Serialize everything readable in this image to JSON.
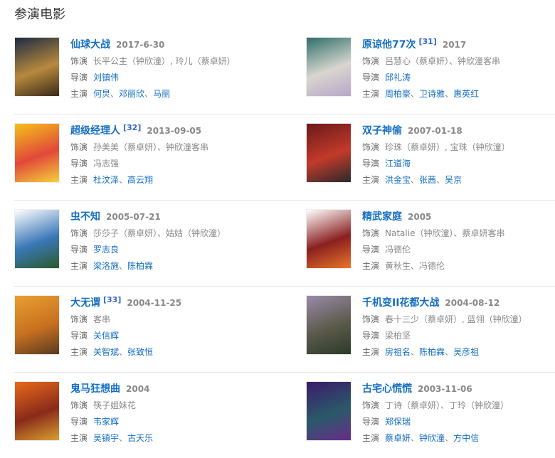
{
  "section_title": "参演电影",
  "colors": {
    "link": "#136ec2",
    "label": "#666666",
    "muted": "#888888"
  },
  "labels": {
    "role": "饰演",
    "director": "导演",
    "cast": "主演"
  },
  "films": [
    {
      "title": "仙球大战",
      "ref": "",
      "date": "2017-6-30",
      "role": "长平公主（钟欣潼）, 玲儿（蔡卓妍）",
      "director": {
        "name": "刘镇伟",
        "link": true
      },
      "cast": [
        {
          "name": "何炅",
          "link": true
        },
        {
          "name": "邓丽欣",
          "link": true
        },
        {
          "name": "马丽",
          "link": true
        }
      ],
      "poster_colors": [
        "#1c2a44",
        "#b7893d",
        "#3a2a1a"
      ]
    },
    {
      "title": "原谅他77次",
      "ref": "[31]",
      "date": "2017",
      "role": "吕慧心（蔡卓妍）、钟欣潼客串",
      "director": {
        "name": "邱礼涛",
        "link": true
      },
      "cast": [
        {
          "name": "周柏豪",
          "link": true
        },
        {
          "name": "卫诗雅",
          "link": true
        },
        {
          "name": "惠英红",
          "link": true
        }
      ],
      "poster_colors": [
        "#2f6f6a",
        "#d8d6cf",
        "#b7a6c9"
      ]
    },
    {
      "title": "超级经理人",
      "ref": "[32]",
      "date": "2013-09-05",
      "role": "孙美美（蔡卓妍）、钟欣潼客串",
      "director": {
        "name": "冯志强",
        "link": false
      },
      "cast": [
        {
          "name": "杜汶泽",
          "link": true
        },
        {
          "name": "高云翔",
          "link": true
        }
      ],
      "poster_colors": [
        "#f4c21a",
        "#e2483a",
        "#f2d23a"
      ]
    },
    {
      "title": "双子神偷",
      "ref": "",
      "date": "2007-01-18",
      "role": "珍珠（蔡卓妍）, 宝珠（钟欣潼）",
      "director": {
        "name": "江道海",
        "link": true
      },
      "cast": [
        {
          "name": "洪金宝",
          "link": true
        },
        {
          "name": "张茜",
          "link": true
        },
        {
          "name": "吴京",
          "link": true
        }
      ],
      "poster_colors": [
        "#6b1a1a",
        "#c23a2a",
        "#2a2a2a"
      ]
    },
    {
      "title": "虫不知",
      "ref": "",
      "date": "2005-07-21",
      "role": "莎莎子（蔡卓妍）、姑姑（钟欣潼）",
      "director": {
        "name": "罗志良",
        "link": true
      },
      "cast": [
        {
          "name": "梁洛施",
          "link": true
        },
        {
          "name": "陈柏霖",
          "link": true
        }
      ],
      "poster_colors": [
        "#ffffff",
        "#3a78b8",
        "#2c5a2c"
      ]
    },
    {
      "title": "精武家庭",
      "ref": "",
      "date": "2005",
      "role": "Natalie（钟欣潼）、蔡卓妍客串",
      "director": {
        "name": "冯德伦",
        "link": false
      },
      "cast": [
        {
          "name": "黄秋生",
          "link": false
        },
        {
          "name": "冯德伦",
          "link": false
        }
      ],
      "poster_colors": [
        "#ffffff",
        "#8a1f1f",
        "#e8762a"
      ]
    },
    {
      "title": "大无谓",
      "ref": "[33]",
      "date": "2004-11-25",
      "role": "客串",
      "director": {
        "name": "关信辉",
        "link": true
      },
      "cast": [
        {
          "name": "关智斌",
          "link": true
        },
        {
          "name": "张致恒",
          "link": true
        }
      ],
      "poster_colors": [
        "#e8a030",
        "#c87020",
        "#5a3a20"
      ]
    },
    {
      "title": "千机变II花都大战",
      "ref": "",
      "date": "2004-08-12",
      "role": "春十三少（蔡卓妍）, 蓝翎（钟欣潼）",
      "director": {
        "name": "梁柏坚",
        "link": false
      },
      "cast": [
        {
          "name": "房祖名",
          "link": true
        },
        {
          "name": "陈柏霖",
          "link": true
        },
        {
          "name": "吴彦祖",
          "link": true
        }
      ],
      "poster_colors": [
        "#9a8aa8",
        "#5a5a4a",
        "#2a3a2a"
      ]
    },
    {
      "title": "鬼马狂想曲",
      "ref": "",
      "date": "2004",
      "role": "筷子姐妹花",
      "director": {
        "name": "韦家辉",
        "link": true
      },
      "cast": [
        {
          "name": "吴镇宇",
          "link": true
        },
        {
          "name": "古天乐",
          "link": true
        }
      ],
      "poster_colors": [
        "#e86a1a",
        "#8a2a1a",
        "#d8a030"
      ]
    },
    {
      "title": "古宅心慌慌",
      "ref": "",
      "date": "2003-11-06",
      "role": "丁诗（蔡卓妍）、丁玲（钟欣潼）",
      "director": {
        "name": "郑保瑞",
        "link": true
      },
      "cast": [
        {
          "name": "蔡卓妍",
          "link": true
        },
        {
          "name": "钟欣潼",
          "link": true
        },
        {
          "name": "方中信",
          "link": true
        }
      ],
      "poster_colors": [
        "#3a1a6a",
        "#2a5a6a",
        "#6a2a8a"
      ]
    }
  ]
}
